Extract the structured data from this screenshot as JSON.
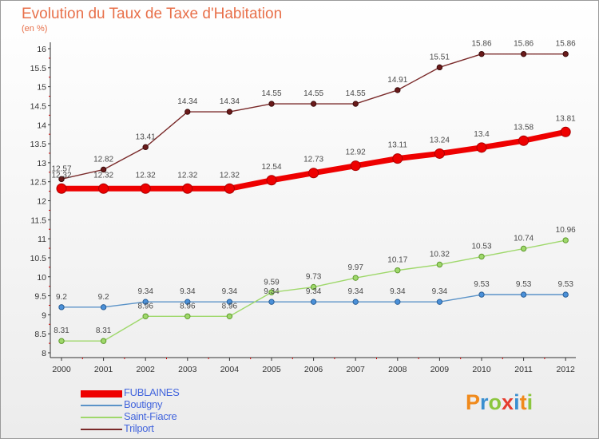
{
  "title": "Evolution du Taux de Taxe d'Habitation",
  "subtitle": "(en %)",
  "chart_data": {
    "type": "line",
    "x": [
      "2000",
      "2001",
      "2002",
      "2003",
      "2004",
      "2005",
      "2006",
      "2007",
      "2008",
      "2009",
      "2010",
      "2011",
      "2012"
    ],
    "ylim": [
      8,
      16
    ],
    "yticks": [
      "8",
      "8.5",
      "9",
      "9.5",
      "10",
      "10.5",
      "11",
      "11.5",
      "12",
      "12.5",
      "13",
      "13.5",
      "14",
      "14.5",
      "15",
      "15.5",
      "16"
    ],
    "grid": false,
    "legend_position": "bottom-left",
    "series": [
      {
        "name": "FUBLAINES",
        "color": "#ee0000",
        "values": [
          12.32,
          12.32,
          12.32,
          12.32,
          12.32,
          12.54,
          12.73,
          12.92,
          13.11,
          13.24,
          13.4,
          13.58,
          13.81
        ],
        "labels": [
          "12.32",
          "12.32",
          "12.32",
          "12.32",
          "12.32",
          "12.54",
          "12.73",
          "12.92",
          "13.11",
          "13.24",
          "13.4",
          "13.58",
          "13.81"
        ]
      },
      {
        "name": "Boutigny",
        "color": "#5b93c8",
        "values": [
          9.2,
          9.2,
          9.34,
          9.34,
          9.34,
          9.34,
          9.34,
          9.34,
          9.34,
          9.34,
          9.53,
          9.53,
          9.53
        ],
        "labels": [
          "9.2",
          "9.2",
          "9.34",
          "9.34",
          "9.34",
          "9.34",
          "9.34",
          "9.34",
          "9.34",
          "9.34",
          "9.53",
          "9.53",
          "9.53"
        ]
      },
      {
        "name": "Saint-Fiacre",
        "color": "#9fd86b",
        "values": [
          8.31,
          8.31,
          8.96,
          8.96,
          8.96,
          9.59,
          9.73,
          9.97,
          10.17,
          10.32,
          10.53,
          10.74,
          10.96
        ],
        "labels": [
          "8.31",
          "8.31",
          "8.96",
          "8.96",
          "8.96",
          "9.59",
          "9.73",
          "9.97",
          "10.17",
          "10.32",
          "10.53",
          "10.74",
          "10.96"
        ]
      },
      {
        "name": "Trilport",
        "color": "#7a2a2a",
        "values": [
          12.57,
          12.82,
          13.41,
          14.34,
          14.34,
          14.55,
          14.55,
          14.55,
          14.91,
          15.51,
          15.86,
          15.86,
          15.86
        ],
        "labels": [
          "12.57",
          "12.82",
          "13.41",
          "14.34",
          "14.34",
          "14.55",
          "14.55",
          "14.55",
          "14.91",
          "15.51",
          "15.86",
          "15.86",
          "15.86"
        ]
      }
    ]
  },
  "logo": {
    "letters": [
      "P",
      "r",
      "o",
      "x",
      "i",
      "t",
      "i"
    ],
    "colors": [
      "#f08a1c",
      "#3a8fd0",
      "#8cc63f",
      "#e63c2e",
      "#3a8fd0",
      "#f08a1c",
      "#8cc63f"
    ]
  }
}
